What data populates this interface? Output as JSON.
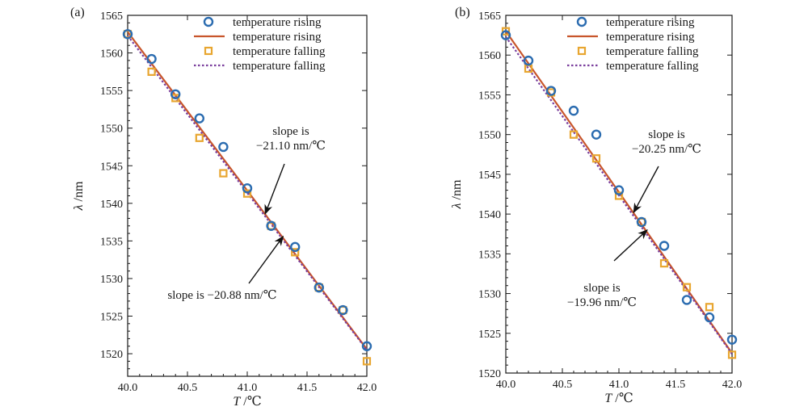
{
  "chart_data": [
    {
      "panel": "(a)",
      "type": "scatter",
      "xlabel_var": "T",
      "xlabel_unit": "/℃",
      "ylabel_var": "λ",
      "ylabel_unit": "/nm",
      "xlim": [
        40.0,
        42.0
      ],
      "ylim": [
        1517,
        1565
      ],
      "xticks": [
        "40.0",
        "40.5",
        "41.0",
        "41.5",
        "42.0"
      ],
      "yticks": [
        "1520",
        "1525",
        "1530",
        "1535",
        "1540",
        "1545",
        "1550",
        "1555",
        "1560",
        "1565"
      ],
      "legend": [
        "temperature rising",
        "temperature rising",
        "temperature falling",
        "temperature falling"
      ],
      "series": [
        {
          "name": "temperature rising",
          "kind": "points",
          "marker": "circle",
          "color": "#2b6cb0",
          "x": [
            40.0,
            40.2,
            40.4,
            40.6,
            40.8,
            41.0,
            41.2,
            41.4,
            41.6,
            41.8,
            42.0
          ],
          "y": [
            1562.5,
            1559.2,
            1554.5,
            1551.3,
            1547.5,
            1542.0,
            1537.0,
            1534.2,
            1528.8,
            1525.8,
            1521.0
          ]
        },
        {
          "name": "temperature rising",
          "kind": "fit",
          "style": "solid",
          "color": "#c8552b",
          "x": [
            40.0,
            42.0
          ],
          "y": [
            1562.8,
            1520.6
          ]
        },
        {
          "name": "temperature falling",
          "kind": "points",
          "marker": "square",
          "color": "#e8a630",
          "x": [
            40.0,
            40.2,
            40.4,
            40.6,
            40.8,
            41.0,
            41.2,
            41.4,
            41.6,
            41.8,
            42.0
          ],
          "y": [
            1562.5,
            1557.5,
            1554.0,
            1548.7,
            1544.0,
            1541.3,
            1537.0,
            1533.5,
            1528.8,
            1525.8,
            1519.0
          ]
        },
        {
          "name": "temperature falling",
          "kind": "fit",
          "style": "dotted",
          "color": "#7a3e9d",
          "x": [
            40.0,
            42.0
          ],
          "y": [
            1562.3,
            1520.5
          ]
        }
      ],
      "annotations": [
        {
          "lines": [
            "slope is",
            "−21.10 nm/℃"
          ],
          "arrow_to": [
            41.15,
            1538.6
          ]
        },
        {
          "lines": [
            "slope is −20.88 nm/℃"
          ],
          "arrow_to": [
            41.3,
            1535.6
          ]
        }
      ]
    },
    {
      "panel": "(b)",
      "type": "scatter",
      "xlabel_var": "T",
      "xlabel_unit": "/℃",
      "ylabel_var": "λ",
      "ylabel_unit": "/nm",
      "xlim": [
        40.0,
        42.0
      ],
      "ylim": [
        1520,
        1565
      ],
      "xticks": [
        "40.0",
        "40.5",
        "41.0",
        "41.5",
        "42.0"
      ],
      "yticks": [
        "1520",
        "1525",
        "1530",
        "1535",
        "1540",
        "1545",
        "1550",
        "1555",
        "1560",
        "1565"
      ],
      "legend": [
        "temperature rising",
        "temperature rising",
        "temperature falling",
        "temperature falling"
      ],
      "series": [
        {
          "name": "temperature rising",
          "kind": "points",
          "marker": "circle",
          "color": "#2b6cb0",
          "x": [
            40.0,
            40.2,
            40.4,
            40.6,
            40.8,
            41.0,
            41.2,
            41.4,
            41.6,
            41.8,
            42.0
          ],
          "y": [
            1562.5,
            1559.3,
            1555.5,
            1553.0,
            1550.0,
            1543.0,
            1539.0,
            1536.0,
            1529.2,
            1527.0,
            1524.2
          ]
        },
        {
          "name": "temperature rising",
          "kind": "fit",
          "style": "solid",
          "color": "#c8552b",
          "x": [
            40.0,
            42.0
          ],
          "y": [
            1563.0,
            1522.5
          ]
        },
        {
          "name": "temperature falling",
          "kind": "points",
          "marker": "square",
          "color": "#e8a630",
          "x": [
            40.0,
            40.2,
            40.4,
            40.6,
            40.8,
            41.0,
            41.2,
            41.4,
            41.6,
            41.8,
            42.0
          ],
          "y": [
            1563.0,
            1558.3,
            1555.3,
            1550.0,
            1547.0,
            1542.3,
            1539.0,
            1533.8,
            1530.8,
            1528.3,
            1522.3
          ]
        },
        {
          "name": "temperature falling",
          "kind": "fit",
          "style": "dotted",
          "color": "#7a3e9d",
          "x": [
            40.0,
            42.0
          ],
          "y": [
            1562.3,
            1522.4
          ]
        }
      ],
      "annotations": [
        {
          "lines": [
            "slope is",
            "−20.25 nm/℃"
          ],
          "arrow_to": [
            41.13,
            1540.2
          ]
        },
        {
          "lines": [
            "slope is",
            "−19.96 nm/℃"
          ],
          "arrow_to": [
            41.25,
            1538.0
          ]
        }
      ]
    }
  ]
}
